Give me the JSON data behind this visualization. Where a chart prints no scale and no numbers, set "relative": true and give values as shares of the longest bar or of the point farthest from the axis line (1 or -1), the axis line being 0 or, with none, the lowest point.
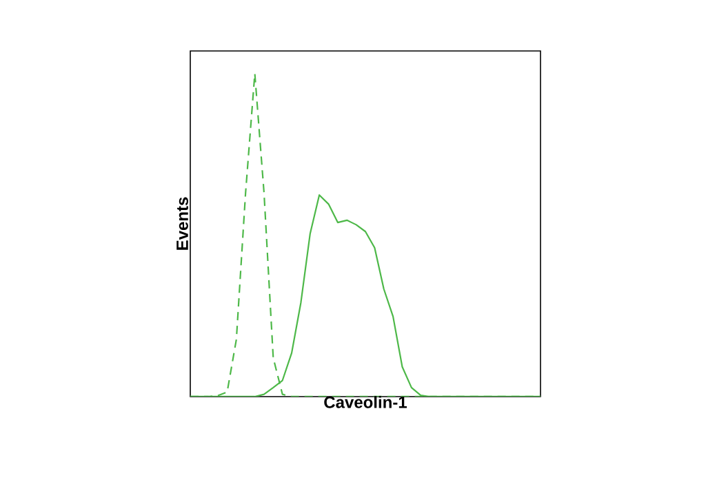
{
  "chart_data": {
    "type": "line",
    "xlabel": "Caveolin-1",
    "ylabel": "Events",
    "relative": true,
    "marker": "none",
    "categories": [
      null,
      null,
      null,
      null,
      null,
      null,
      null,
      null,
      null,
      null,
      null,
      null,
      null,
      null,
      null,
      null,
      null,
      null,
      null,
      null,
      null,
      null,
      null,
      null,
      null,
      null,
      null,
      null,
      null,
      null,
      null,
      null,
      null,
      null,
      null,
      null,
      null,
      null,
      null
    ],
    "series": [
      {
        "color": "#4db848",
        "line_style": "dashed",
        "values": [
          0,
          0,
          0,
          0.003,
          0.014,
          0.177,
          0.631,
          1.0,
          0.631,
          0.12,
          0.007,
          0,
          0,
          0,
          0,
          0,
          0,
          0,
          0,
          0,
          0,
          0,
          0,
          0,
          0,
          0,
          0,
          0,
          0,
          0,
          0,
          0,
          0,
          0,
          0,
          0,
          0,
          0,
          0
        ]
      },
      {
        "color": "#4db848",
        "line_style": "solid",
        "values": [
          0,
          0,
          0,
          0,
          0,
          0,
          0,
          0,
          0.007,
          0.028,
          0.05,
          0.135,
          0.291,
          0.504,
          0.624,
          0.596,
          0.539,
          0.546,
          0.532,
          0.511,
          0.461,
          0.333,
          0.248,
          0.092,
          0.028,
          0.004,
          0,
          0,
          0,
          0,
          0,
          0,
          0,
          0,
          0,
          0,
          0,
          0,
          0
        ]
      }
    ]
  }
}
